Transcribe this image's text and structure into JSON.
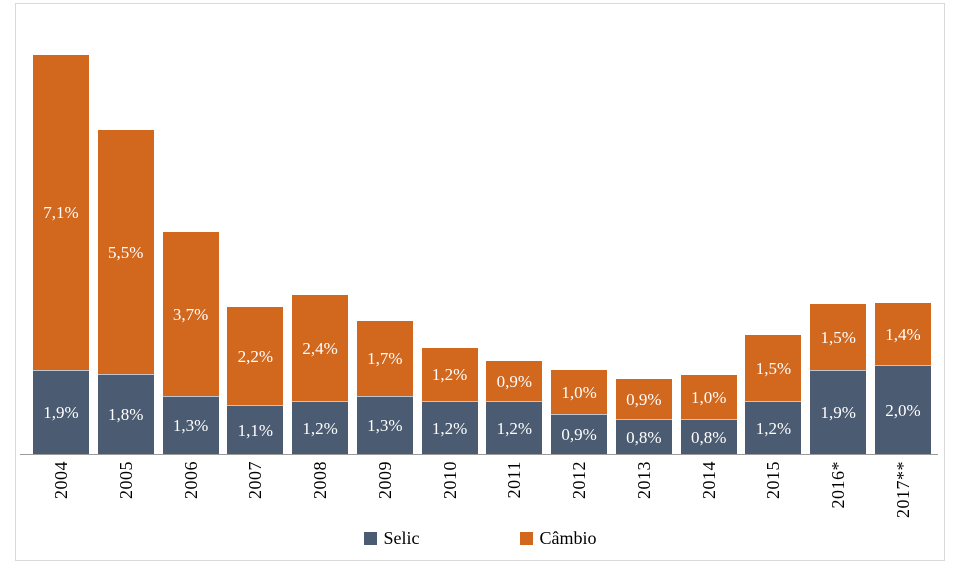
{
  "chart_data": {
    "type": "bar",
    "stacked": true,
    "title": "",
    "xlabel": "",
    "ylabel": "",
    "grid": false,
    "legend_position": "bottom",
    "ylim": [
      0,
      10.3
    ],
    "categories": [
      "2004",
      "2005",
      "2006",
      "2007",
      "2008",
      "2009",
      "2010",
      "2011",
      "2012",
      "2013",
      "2014",
      "2015",
      "2016*",
      "2017**"
    ],
    "series": [
      {
        "name": "Selic",
        "color": "#4B5B71",
        "values": [
          1.9,
          1.8,
          1.3,
          1.1,
          1.2,
          1.3,
          1.2,
          1.2,
          0.9,
          0.8,
          0.8,
          1.2,
          1.9,
          2.0
        ],
        "labels": [
          "1,9%",
          "1,8%",
          "1,3%",
          "1,1%",
          "1,2%",
          "1,3%",
          "1,2%",
          "1,2%",
          "0,9%",
          "0,8%",
          "0,8%",
          "1,2%",
          "1,9%",
          "2,0%"
        ]
      },
      {
        "name": "Câmbio",
        "color": "#D2671E",
        "values": [
          7.1,
          5.5,
          3.7,
          2.2,
          2.4,
          1.7,
          1.2,
          0.9,
          1.0,
          0.9,
          1.0,
          1.5,
          1.5,
          1.4
        ],
        "labels": [
          "7,1%",
          "5,5%",
          "3,7%",
          "2,2%",
          "2,4%",
          "1,7%",
          "1,2%",
          "0,9%",
          "1,0%",
          "0,9%",
          "1,0%",
          "1,5%",
          "1,5%",
          "1,4%"
        ]
      }
    ],
    "data_label_color": "#FFFFFF"
  },
  "legend": {
    "items": [
      {
        "label": "Selic",
        "color": "#4B5B71"
      },
      {
        "label": "Câmbio",
        "color": "#D2671E"
      }
    ]
  },
  "colors": {
    "selic": "#4B5B71",
    "cambio": "#D2671E",
    "axis_line": "#9B9B9B",
    "frame_border": "#D9D9D9",
    "background": "#FFFFFF",
    "data_label": "#FFFFFF",
    "category_label": "#000000"
  }
}
